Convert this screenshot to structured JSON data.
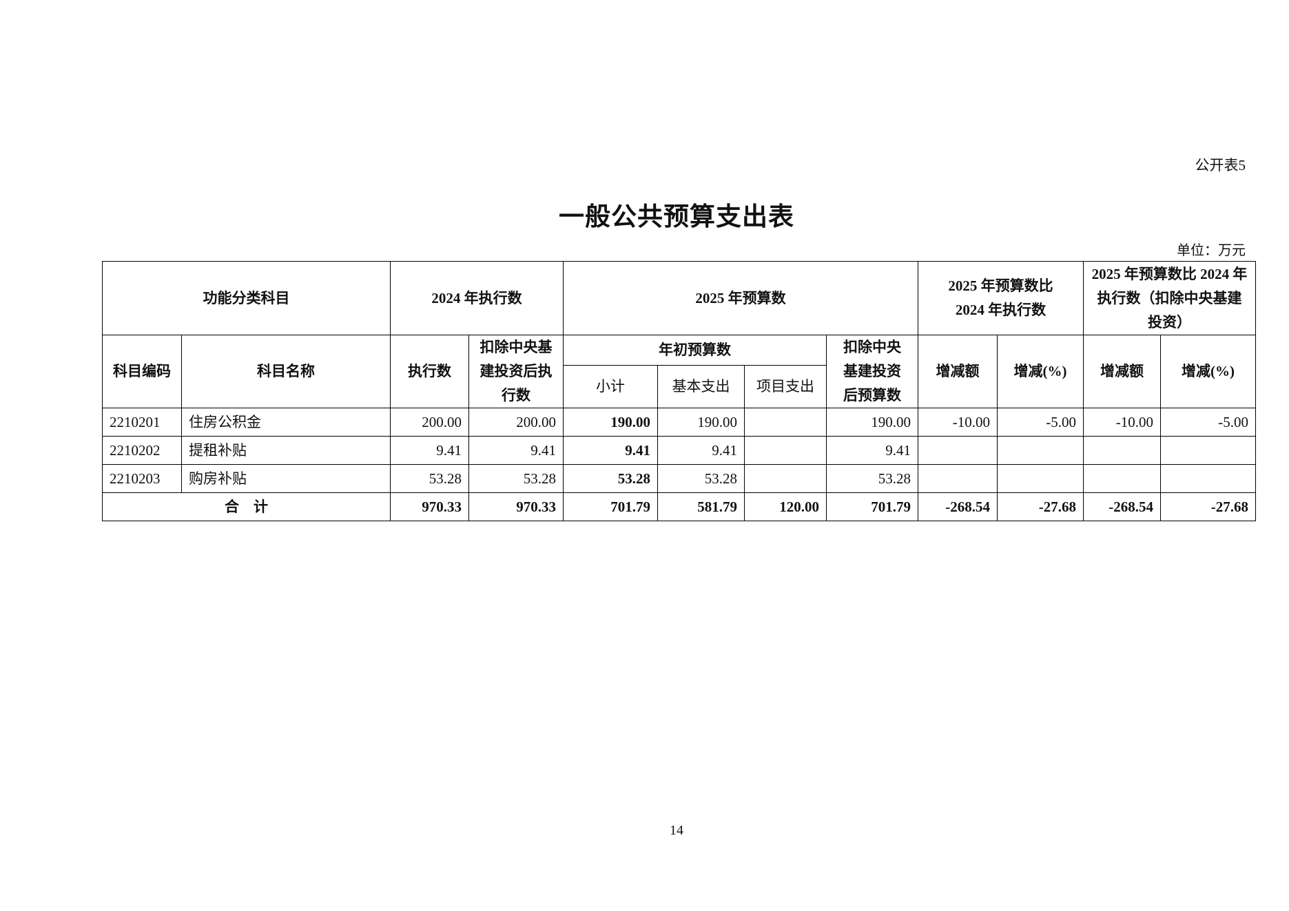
{
  "page_tag": "公开表5",
  "title": "一般公共预算支出表",
  "unit": "单位：万元",
  "page_number": "14",
  "header": {
    "func_category": "功能分类科目",
    "exec_2024": "2024 年执行数",
    "budget_2025": "2025 年预算数",
    "cmp_exec": "2025 年预算数比 2024 年执行数",
    "cmp_excl": "2025 年预算数比 2024 年执行数（扣除中央基建投资）",
    "code": "科目编码",
    "name": "科目名称",
    "exec": "执行数",
    "exec_excl": "扣除中央基建投资后执行数",
    "initial_budget": "年初预算数",
    "budget_excl": "扣除中央基建投资后预算数",
    "subtotal": "小计",
    "basic": "基本支出",
    "project": "项目支出",
    "change_amt": "增减额",
    "change_pct": "增减(%)",
    "change_amt2": "增减额",
    "change_pct2": "增减(%)"
  },
  "rows": [
    {
      "code": "2210201",
      "name": "住房公积金",
      "exec": "200.00",
      "exec_excl": "200.00",
      "subtotal": "190.00",
      "basic": "190.00",
      "project": "",
      "budget_excl": "190.00",
      "chg_amt": "-10.00",
      "chg_pct": "-5.00",
      "chg_amt2": "-10.00",
      "chg_pct2": "-5.00"
    },
    {
      "code": "2210202",
      "name": "提租补贴",
      "exec": "9.41",
      "exec_excl": "9.41",
      "subtotal": "9.41",
      "basic": "9.41",
      "project": "",
      "budget_excl": "9.41",
      "chg_amt": "",
      "chg_pct": "",
      "chg_amt2": "",
      "chg_pct2": ""
    },
    {
      "code": "2210203",
      "name": "购房补贴",
      "exec": "53.28",
      "exec_excl": "53.28",
      "subtotal": "53.28",
      "basic": "53.28",
      "project": "",
      "budget_excl": "53.28",
      "chg_amt": "",
      "chg_pct": "",
      "chg_amt2": "",
      "chg_pct2": ""
    }
  ],
  "total": {
    "label": "合　计",
    "exec": "970.33",
    "exec_excl": "970.33",
    "subtotal": "701.79",
    "basic": "581.79",
    "project": "120.00",
    "budget_excl": "701.79",
    "chg_amt": "-268.54",
    "chg_pct": "-27.68",
    "chg_amt2": "-268.54",
    "chg_pct2": "-27.68"
  }
}
